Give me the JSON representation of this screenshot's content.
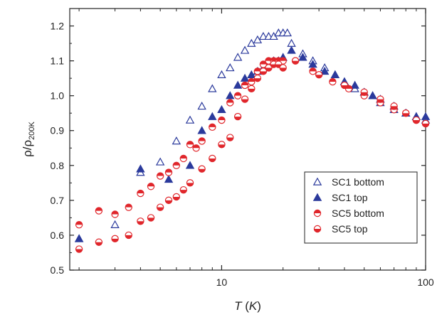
{
  "chart_data": {
    "type": "scatter",
    "x_scale": "log",
    "xlim": [
      1.8,
      100
    ],
    "ylim": [
      0.5,
      1.25
    ],
    "xlabel": "T (K)",
    "ylabel": "ρ/ρ200K",
    "x_ticks": [
      10,
      100
    ],
    "y_ticks": [
      0.5,
      0.6,
      0.7,
      0.8,
      0.9,
      1.0,
      1.1,
      1.2
    ],
    "x_tick_labels": [
      "10",
      "100"
    ],
    "y_tick_labels": [
      "0.5",
      "0.6",
      "0.7",
      "0.8",
      "0.9",
      "1.0",
      "1.1",
      "1.2"
    ],
    "legend_position": "bottom-right",
    "series": [
      {
        "name": "SC1 bottom",
        "marker": "triangle-open",
        "color": "#2b3a9c",
        "x": [
          2.0,
          3.0,
          4.0,
          5.0,
          6.0,
          7.0,
          8.0,
          9.0,
          10.0,
          11.0,
          12.0,
          13.0,
          14.0,
          15.0,
          16.0,
          17.0,
          18.0,
          19.0,
          20.0,
          21.0,
          22.0,
          25.0,
          28.0,
          32.0,
          36.0,
          40.0,
          45.0,
          50.0,
          55.0,
          60.0,
          70.0,
          80.0,
          90.0,
          100.0
        ],
        "y": [
          0.59,
          0.63,
          0.78,
          0.81,
          0.87,
          0.93,
          0.97,
          1.02,
          1.06,
          1.08,
          1.11,
          1.13,
          1.15,
          1.16,
          1.17,
          1.17,
          1.17,
          1.18,
          1.18,
          1.18,
          1.15,
          1.12,
          1.1,
          1.08,
          1.06,
          1.04,
          1.02,
          1.01,
          1.0,
          0.99,
          0.97,
          0.95,
          0.94,
          0.93
        ]
      },
      {
        "name": "SC1 top",
        "marker": "triangle-filled",
        "color": "#2b3a9c",
        "x": [
          2.0,
          4.0,
          5.5,
          7.0,
          8.0,
          9.0,
          10.0,
          11.0,
          12.0,
          13.0,
          14.0,
          15.0,
          16.0,
          17.0,
          18.0,
          19.0,
          20.0,
          22.0,
          25.0,
          28.0,
          32.0,
          36.0,
          40.0,
          45.0,
          50.0,
          55.0,
          60.0,
          70.0,
          80.0,
          90.0,
          100.0
        ],
        "y": [
          0.59,
          0.79,
          0.76,
          0.8,
          0.9,
          0.94,
          0.96,
          1.0,
          1.03,
          1.05,
          1.06,
          1.07,
          1.08,
          1.09,
          1.1,
          1.1,
          1.11,
          1.13,
          1.11,
          1.09,
          1.07,
          1.06,
          1.04,
          1.03,
          1.01,
          1.0,
          0.98,
          0.96,
          0.95,
          0.94,
          0.94
        ]
      },
      {
        "name": "SC5 bottom",
        "marker": "circle-half-top",
        "color": "#e0262b",
        "x": [
          2.0,
          2.5,
          3.0,
          3.5,
          4.0,
          4.5,
          5.0,
          5.5,
          6.0,
          6.5,
          7.0,
          7.5,
          8.0,
          9.0,
          10.0,
          11.0,
          12.0,
          13.0,
          14.0,
          15.0,
          16.0,
          17.0,
          18.0,
          19.0,
          20.0,
          23.0,
          28.0,
          35.0,
          42.0,
          50.0,
          60.0,
          70.0,
          80.0,
          90.0,
          100.0
        ],
        "y": [
          0.63,
          0.67,
          0.66,
          0.68,
          0.72,
          0.74,
          0.77,
          0.78,
          0.8,
          0.82,
          0.86,
          0.85,
          0.87,
          0.91,
          0.93,
          0.98,
          1.0,
          1.03,
          1.04,
          1.07,
          1.09,
          1.1,
          1.1,
          1.1,
          1.1,
          1.1,
          1.07,
          1.04,
          1.02,
          1.0,
          0.98,
          0.96,
          0.95,
          0.93,
          0.92
        ]
      },
      {
        "name": "SC5 top",
        "marker": "circle-half-bottom",
        "color": "#e0262b",
        "x": [
          2.0,
          2.5,
          3.0,
          3.5,
          4.0,
          4.5,
          5.0,
          5.5,
          6.0,
          6.5,
          7.0,
          8.0,
          9.0,
          10.0,
          11.0,
          12.0,
          13.0,
          14.0,
          15.0,
          16.0,
          17.0,
          18.0,
          19.0,
          20.0,
          23.0,
          30.0,
          40.0,
          50.0,
          60.0,
          70.0,
          80.0,
          90.0,
          100.0
        ],
        "y": [
          0.56,
          0.58,
          0.59,
          0.6,
          0.64,
          0.65,
          0.68,
          0.7,
          0.71,
          0.73,
          0.75,
          0.79,
          0.82,
          0.86,
          0.88,
          0.94,
          0.99,
          1.02,
          1.05,
          1.07,
          1.08,
          1.09,
          1.09,
          1.08,
          1.1,
          1.06,
          1.03,
          1.01,
          0.99,
          0.97,
          0.95,
          0.93,
          0.92
        ]
      }
    ]
  }
}
